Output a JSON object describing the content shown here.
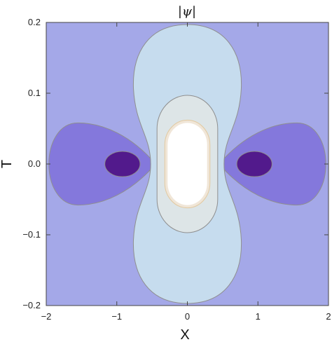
{
  "chart_data": {
    "type": "contour",
    "title": "|ψ|",
    "xlabel": "X",
    "ylabel": "T",
    "xlim": [
      -2,
      2
    ],
    "ylim": [
      -0.2,
      0.2
    ],
    "x_ticks": [
      -2,
      -1,
      0,
      1,
      2
    ],
    "y_ticks": [
      -0.2,
      -0.1,
      0.0,
      0.1,
      0.2
    ],
    "x_tick_labels": [
      "−2",
      "−1",
      "0",
      "1",
      "2"
    ],
    "y_tick_labels": [
      "−0.2",
      "−0.1",
      "0.0",
      "0.1",
      "0.2"
    ],
    "grid": false,
    "legend": "none",
    "regions": [
      {
        "kind": "background",
        "color": "#a4a8e8"
      },
      {
        "kind": "lobe",
        "side": "left",
        "center": [
          -1.0,
          0.0
        ],
        "half_width": 1.0,
        "half_height": 0.058,
        "color": "#8478dc"
      },
      {
        "kind": "lobe",
        "side": "right",
        "center": [
          1.0,
          0.0
        ],
        "half_width": 1.0,
        "half_height": 0.058,
        "color": "#8478dc"
      },
      {
        "kind": "dip",
        "side": "left",
        "center": [
          -0.92,
          0.0
        ],
        "half_width": 0.25,
        "half_height": 0.018,
        "color": "#521a8c"
      },
      {
        "kind": "dip",
        "side": "right",
        "center": [
          0.95,
          0.0
        ],
        "half_width": 0.25,
        "half_height": 0.018,
        "color": "#521a8c"
      },
      {
        "kind": "peak-level",
        "level": 1,
        "t_range": [
          -0.197,
          0.197
        ],
        "max_half_width": 0.78,
        "waist_half_width": 0.52,
        "color": "#c6dcee"
      },
      {
        "kind": "peak-level",
        "level": 2,
        "t_range": [
          -0.097,
          0.097
        ],
        "max_half_width": 0.43,
        "color": "#dde5e7"
      },
      {
        "kind": "peak-level",
        "level": 3,
        "t_range": [
          -0.062,
          0.062
        ],
        "max_half_width": 0.32,
        "color": "#f0e6d8"
      },
      {
        "kind": "peak-level",
        "level": 4,
        "t_range": [
          -0.058,
          0.058
        ],
        "max_half_width": 0.28,
        "color": "#ffffff"
      }
    ]
  }
}
